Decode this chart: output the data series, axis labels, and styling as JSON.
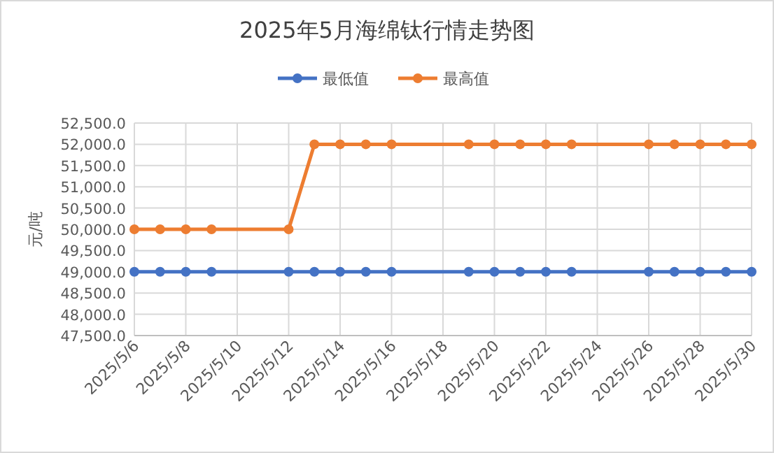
{
  "chart_data": {
    "type": "line",
    "title": "2025年5月海绵钛行情走势图",
    "ylabel": "元/吨",
    "x": [
      "2025-05-06",
      "2025-05-07",
      "2025-05-08",
      "2025-05-09",
      "2025-05-12",
      "2025-05-13",
      "2025-05-14",
      "2025-05-15",
      "2025-05-16",
      "2025-05-19",
      "2025-05-20",
      "2025-05-21",
      "2025-05-22",
      "2025-05-23",
      "2025-05-26",
      "2025-05-27",
      "2025-05-28",
      "2025-05-29",
      "2025-05-30"
    ],
    "series": [
      {
        "name": "最低值",
        "color": "#4472c4",
        "values": [
          49000,
          49000,
          49000,
          49000,
          49000,
          49000,
          49000,
          49000,
          49000,
          49000,
          49000,
          49000,
          49000,
          49000,
          49000,
          49000,
          49000,
          49000,
          49000
        ]
      },
      {
        "name": "最高值",
        "color": "#ed7d31",
        "values": [
          50000,
          50000,
          50000,
          50000,
          50000,
          52000,
          52000,
          52000,
          52000,
          52000,
          52000,
          52000,
          52000,
          52000,
          52000,
          52000,
          52000,
          52000,
          52000
        ]
      }
    ],
    "xlim": [
      "2025-05-06",
      "2025-05-30"
    ],
    "xticks": [
      {
        "value": "2025-05-06",
        "label": "2025/5/6"
      },
      {
        "value": "2025-05-08",
        "label": "2025/5/8"
      },
      {
        "value": "2025-05-10",
        "label": "2025/5/10"
      },
      {
        "value": "2025-05-12",
        "label": "2025/5/12"
      },
      {
        "value": "2025-05-14",
        "label": "2025/5/14"
      },
      {
        "value": "2025-05-16",
        "label": "2025/5/16"
      },
      {
        "value": "2025-05-18",
        "label": "2025/5/18"
      },
      {
        "value": "2025-05-20",
        "label": "2025/5/20"
      },
      {
        "value": "2025-05-22",
        "label": "2025/5/22"
      },
      {
        "value": "2025-05-24",
        "label": "2025/5/24"
      },
      {
        "value": "2025-05-26",
        "label": "2025/5/26"
      },
      {
        "value": "2025-05-28",
        "label": "2025/5/28"
      },
      {
        "value": "2025-05-30",
        "label": "2025/5/30"
      }
    ],
    "ylim": [
      47500,
      52500
    ],
    "yticks": [
      {
        "value": 47500,
        "label": "47,500.0"
      },
      {
        "value": 48000,
        "label": "48,000.0"
      },
      {
        "value": 48500,
        "label": "48,500.0"
      },
      {
        "value": 49000,
        "label": "49,000.0"
      },
      {
        "value": 49500,
        "label": "49,500.0"
      },
      {
        "value": 50000,
        "label": "50,000.0"
      },
      {
        "value": 50500,
        "label": "50,500.0"
      },
      {
        "value": 51000,
        "label": "51,000.0"
      },
      {
        "value": 51500,
        "label": "51,500.0"
      },
      {
        "value": 52000,
        "label": "52,000.0"
      },
      {
        "value": 52500,
        "label": "52,500.0"
      }
    ],
    "grid": true,
    "legend": "top",
    "marker": "circle",
    "line_style": "solid"
  }
}
